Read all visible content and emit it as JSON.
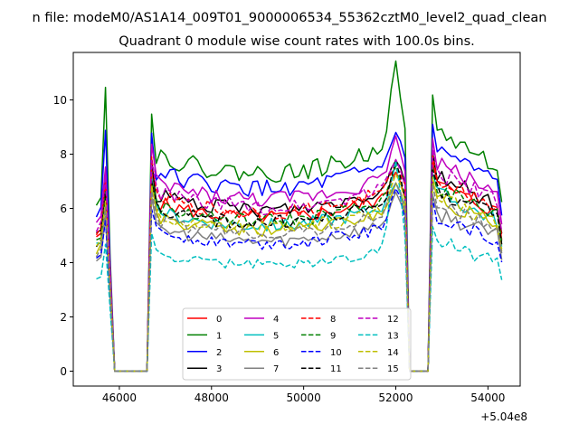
{
  "figure": {
    "suptitle": "n file: modeM0/AS1A14_009T01_9000006534_55362cztM0_level2_quad_clean",
    "title": "Quadrant 0 module wise count rates with 100.0s bins.",
    "offset_label": "+5.04e8"
  },
  "chart_data": {
    "type": "line",
    "title": "Quadrant 0 module wise count rates with 100.0s bins.",
    "xlabel": "",
    "ylabel": "",
    "x_offset": 504000000,
    "xlim": [
      45000,
      54700
    ],
    "ylim": [
      -0.55,
      11.75
    ],
    "xticks": [
      46000,
      48000,
      50000,
      52000,
      54000
    ],
    "xtick_labels": [
      "46000",
      "48000",
      "50000",
      "52000",
      "54000"
    ],
    "yticks": [
      0,
      2,
      4,
      6,
      8,
      10
    ],
    "ytick_labels": [
      "0",
      "2",
      "4",
      "6",
      "8",
      "10"
    ],
    "grid": false,
    "legend": {
      "placement": "lower-center",
      "columns": 4
    },
    "time_bins": {
      "start": 45500,
      "step": 100,
      "rise1": [
        45500,
        45600,
        45700,
        45800
      ],
      "zero1": [
        45900,
        46600
      ],
      "seg1": [
        46700,
        51500
      ],
      "peak": [
        51600,
        52200
      ],
      "zero2": [
        52300,
        52700
      ],
      "seg2": [
        52800,
        54300
      ]
    },
    "series": [
      {
        "name": "0",
        "color": "#ff0000",
        "dash": "solid",
        "level": 5.9,
        "peak": 7.4
      },
      {
        "name": "1",
        "color": "#008000",
        "dash": "solid",
        "level": 7.6,
        "peak": 11.3
      },
      {
        "name": "2",
        "color": "#0000ff",
        "dash": "solid",
        "level": 7.0,
        "peak": 8.8
      },
      {
        "name": "3",
        "color": "#000000",
        "dash": "solid",
        "level": 6.2,
        "peak": 7.9
      },
      {
        "name": "4",
        "color": "#bf00bf",
        "dash": "solid",
        "level": 6.6,
        "peak": 8.6
      },
      {
        "name": "5",
        "color": "#00bfbf",
        "dash": "solid",
        "level": 5.6,
        "peak": 7.0
      },
      {
        "name": "6",
        "color": "#bfbf00",
        "dash": "solid",
        "level": 5.4,
        "peak": 6.8
      },
      {
        "name": "7",
        "color": "#808080",
        "dash": "solid",
        "level": 5.0,
        "peak": 6.6
      },
      {
        "name": "8",
        "color": "#ff0000",
        "dash": "dashed",
        "level": 6.1,
        "peak": 7.7
      },
      {
        "name": "9",
        "color": "#008000",
        "dash": "dashed",
        "level": 5.8,
        "peak": 7.5
      },
      {
        "name": "10",
        "color": "#0000ff",
        "dash": "dashed",
        "level": 4.9,
        "peak": 6.8
      },
      {
        "name": "11",
        "color": "#000000",
        "dash": "dashed",
        "level": 5.7,
        "peak": 7.6
      },
      {
        "name": "12",
        "color": "#bf00bf",
        "dash": "dashed",
        "level": 6.3,
        "peak": 7.8
      },
      {
        "name": "13",
        "color": "#00bfbf",
        "dash": "dashed",
        "level": 4.1,
        "peak": 7.9
      },
      {
        "name": "14",
        "color": "#bfbf00",
        "dash": "dashed",
        "level": 5.5,
        "peak": 7.2
      },
      {
        "name": "15",
        "color": "#808080",
        "dash": "dashed",
        "level": 5.3,
        "peak": 7.0
      }
    ]
  }
}
